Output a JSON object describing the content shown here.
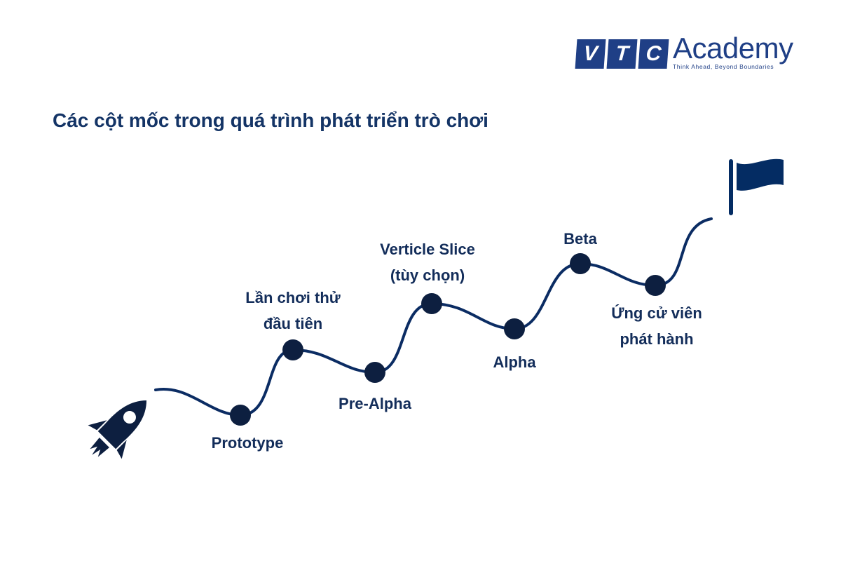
{
  "logo": {
    "letters": [
      "V",
      "T",
      "C"
    ],
    "name": "Academy",
    "tagline": "Think Ahead, Beyond Boundaries"
  },
  "title": "Các cột mốc trong quá trình phát triển trò chơi",
  "milestones": [
    {
      "line1": "Prototype",
      "line2": ""
    },
    {
      "line1": "Lần chơi thử",
      "line2": "đầu tiên"
    },
    {
      "line1": "Pre-Alpha",
      "line2": ""
    },
    {
      "line1": "Verticle Slice",
      "line2": "(tùy chọn)"
    },
    {
      "line1": "Alpha",
      "line2": ""
    },
    {
      "line1": "Beta",
      "line2": ""
    },
    {
      "line1": "Ứng cử viên",
      "line2": "phát hành"
    }
  ],
  "icons": {
    "start": "rocket-icon",
    "end": "flag-icon"
  },
  "colors": {
    "path": "#0b2c63",
    "dot": "#0d1f40",
    "text": "#132d5a",
    "brand": "#1f3f86"
  }
}
